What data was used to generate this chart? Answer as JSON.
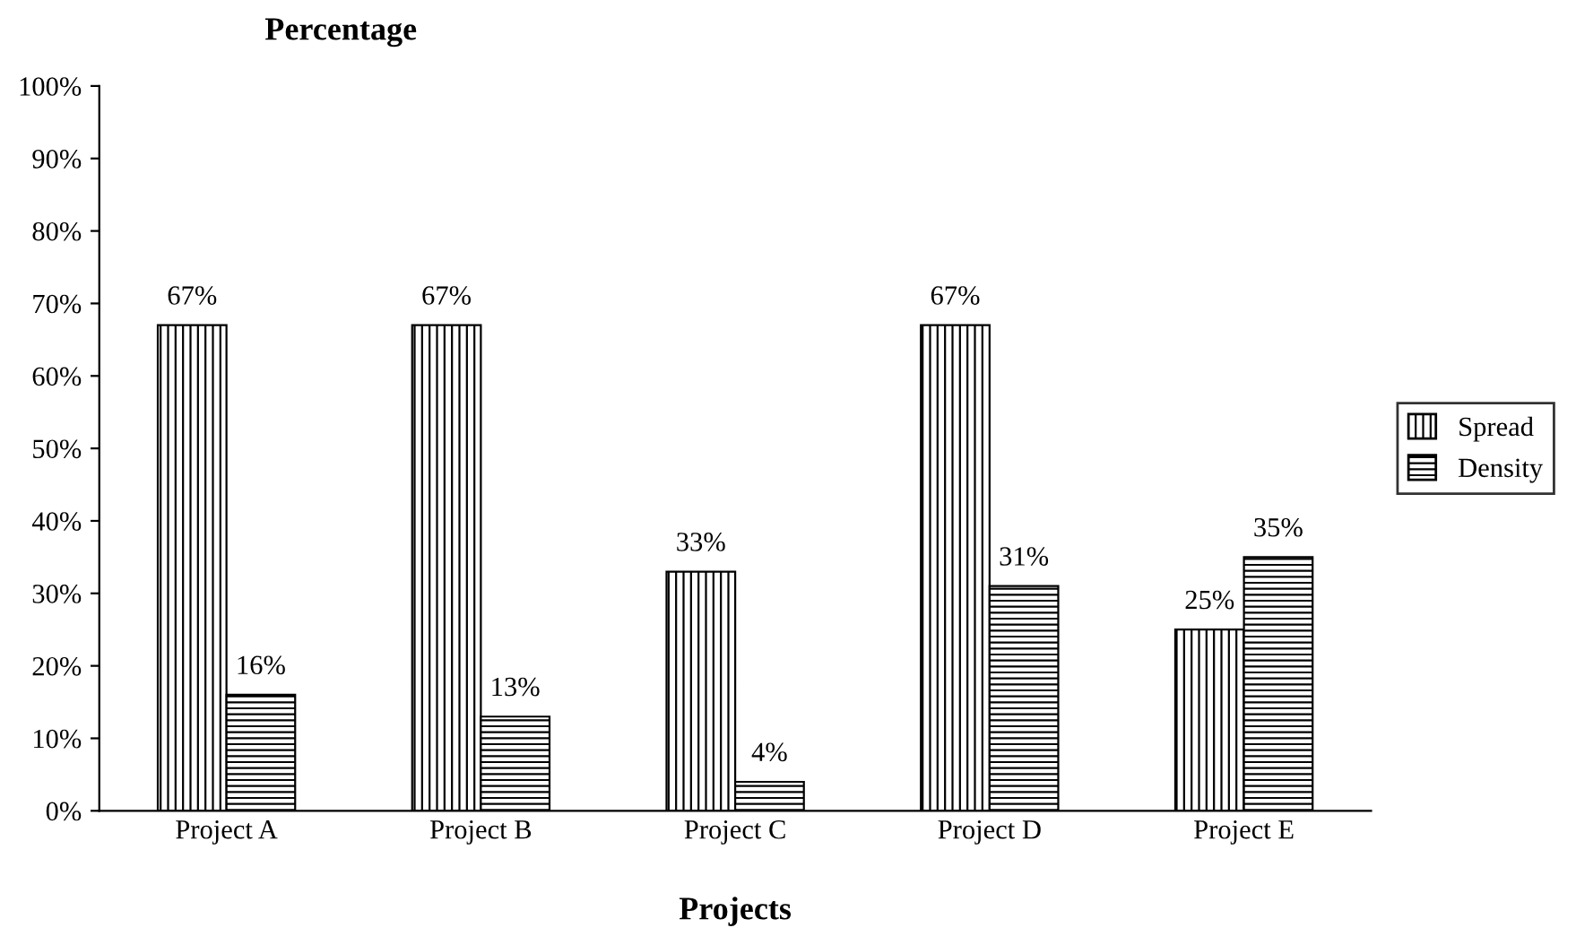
{
  "chart_data": {
    "type": "bar",
    "ylabel": "Percentage",
    "xlabel": "Projects",
    "categories": [
      "Project A",
      "Project B",
      "Project C",
      "Project D",
      "Project E"
    ],
    "series": [
      {
        "name": "Spread",
        "color": "#000000",
        "values": [
          67,
          67,
          33,
          67,
          25
        ],
        "value_labels": [
          "67%",
          "67%",
          "33%",
          "67%",
          "25%"
        ]
      },
      {
        "name": "Density",
        "color": "#000000",
        "values": [
          16,
          13,
          4,
          31,
          35
        ],
        "value_labels": [
          "16%",
          "13%",
          "4%",
          "31%",
          "35%"
        ]
      }
    ],
    "ylim": [
      0,
      100
    ],
    "yticks": [
      {
        "value": 0,
        "label": "0%"
      },
      {
        "value": 10,
        "label": "10%"
      },
      {
        "value": 20,
        "label": "20%"
      },
      {
        "value": 30,
        "label": "30%"
      },
      {
        "value": 40,
        "label": "40%"
      },
      {
        "value": 50,
        "label": "50%"
      },
      {
        "value": 60,
        "label": "60%"
      },
      {
        "value": 70,
        "label": "70%"
      },
      {
        "value": 80,
        "label": "80%"
      },
      {
        "value": 90,
        "label": "90%"
      },
      {
        "value": 100,
        "label": "100%"
      }
    ],
    "legend": "right",
    "grid": false
  }
}
